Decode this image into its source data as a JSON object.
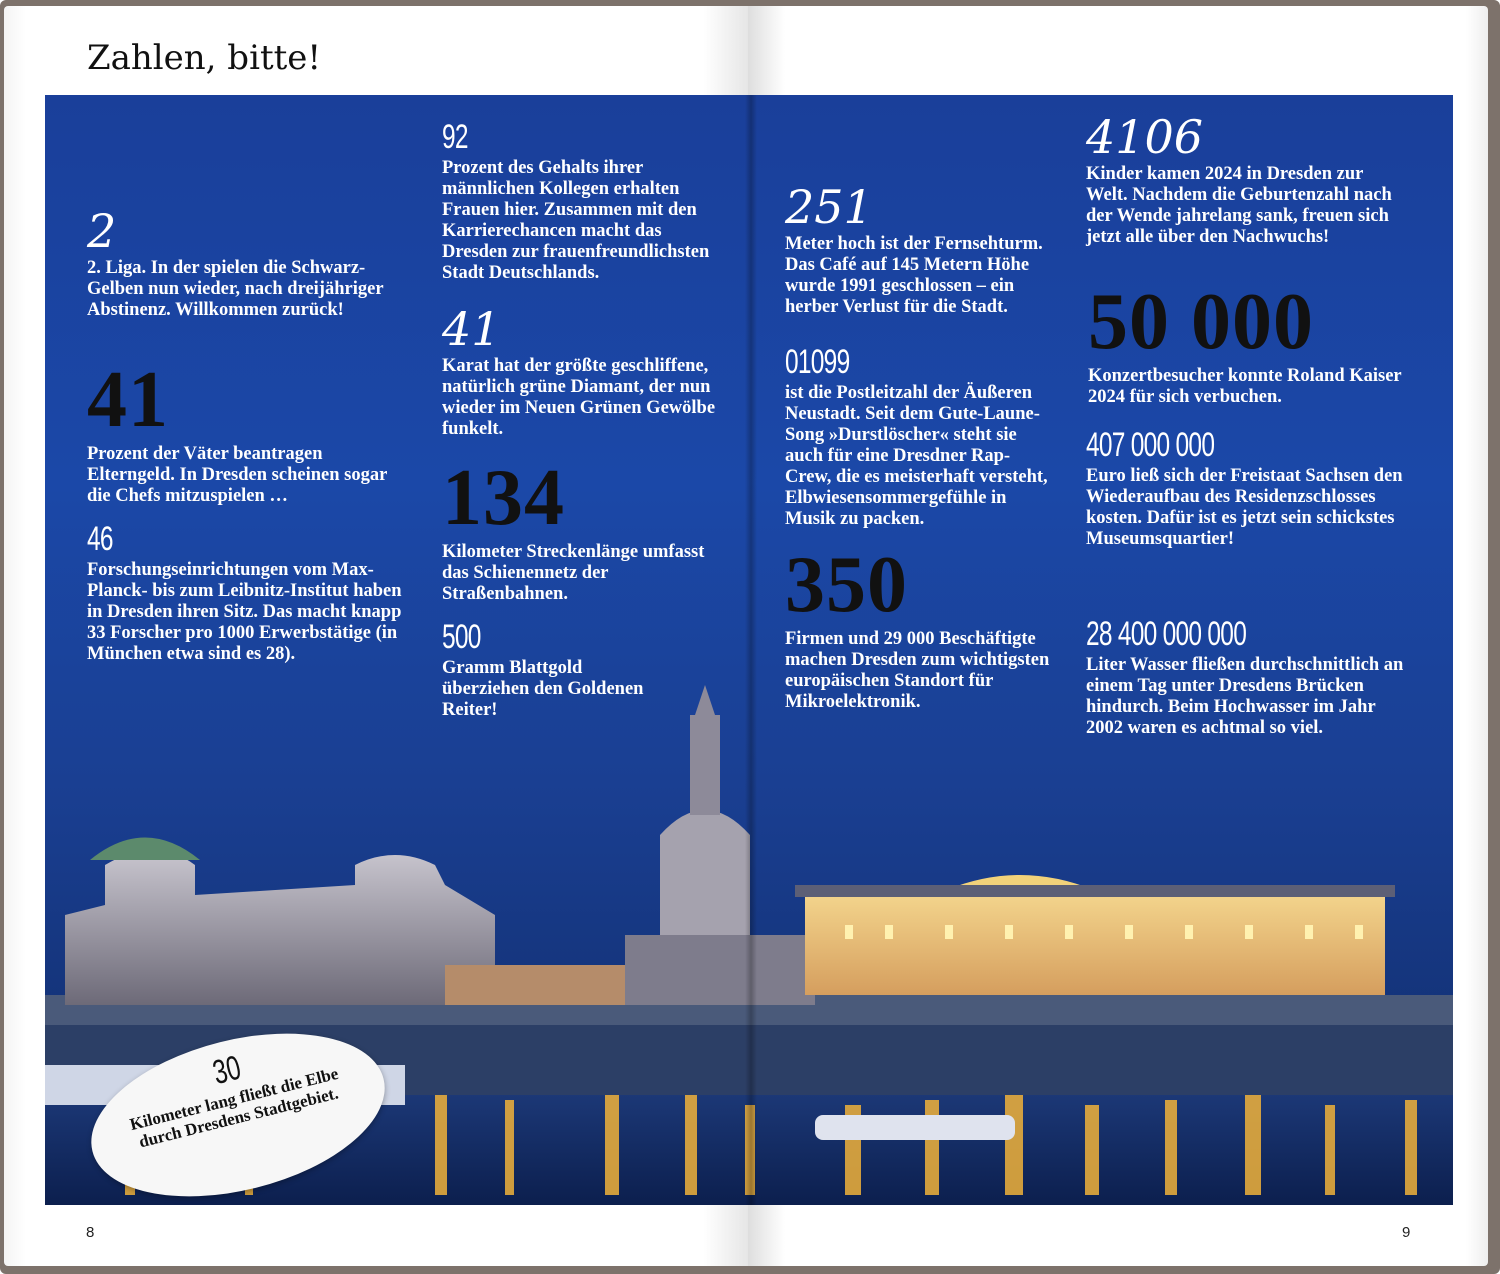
{
  "header": {
    "title": "Zahlen, bitte!"
  },
  "colors": {
    "panel_blue": "#1b48a8",
    "book_edge": "#7d726b",
    "big_number": "#111111"
  },
  "stats": [
    {
      "number": "2",
      "text": "2. Liga. In der spielen die Schwarz-Gelben nun wieder, nach dreijähriger Abstinenz. Willkommen zurück!"
    },
    {
      "number": "41",
      "text": "Prozent der Väter beantragen Elterngeld. In Dresden scheinen sogar die Chefs mitzuspielen …"
    },
    {
      "number": "46",
      "text": "Forschungseinrichtungen vom Max-Planck- bis zum Leibnitz-Institut haben in Dresden ihren Sitz. Das macht knapp 33 Forscher pro 1000 Erwerbstätige (in München etwa sind es 28)."
    },
    {
      "number": "92",
      "text": "Prozent des Gehalts ihrer männlichen Kollegen erhalten Frauen hier. Zusammen mit den Karrierechancen macht das Dresden zur frauenfreundlichsten Stadt Deutschlands."
    },
    {
      "number": "41",
      "text": "Karat hat der größte geschliffene, natürlich grüne Diamant, der nun wieder im Neuen Grünen Gewölbe funkelt."
    },
    {
      "number": "134",
      "text": "Kilometer Streckenlänge umfasst das Schienennetz der Straßenbahnen."
    },
    {
      "number": "500",
      "text": "Gramm Blattgold überziehen den Goldenen Reiter!"
    },
    {
      "number": "251",
      "text": "Meter hoch ist der Fernsehturm. Das Café auf 145 Metern Höhe wurde 1991 geschlossen – ein herber Verlust für die Stadt."
    },
    {
      "number": "01099",
      "text": "ist die Postleitzahl der Äußeren Neustadt. Seit dem Gute-Laune-Song »Durstlöscher« steht sie auch für eine Dresdner Rap-Crew, die es meisterhaft versteht, Elbwiesensommergefühle in Musik zu packen."
    },
    {
      "number": "350",
      "text": "Firmen und 29 000 Beschäftigte machen Dresden zum wichtigsten europäischen Standort für Mikroelektronik."
    },
    {
      "number": "4106",
      "text": "Kinder kamen 2024 in Dresden zur Welt. Nachdem die Geburtenzahl nach der Wende jahrelang sank, freuen sich jetzt alle über den Nachwuchs!"
    },
    {
      "number": "50 000",
      "text": "Konzertbesucher konnte Roland Kaiser 2024 für sich verbuchen."
    },
    {
      "number": "407 000 000",
      "text": "Euro ließ sich der Freistaat Sachsen den Wiederaufbau des Residenzschlosses kosten. Dafür ist es jetzt sein schickstes Museumsquartier!"
    },
    {
      "number": "28 400 000 000",
      "text": "Liter Wasser fließen durchschnittlich an einem Tag unter Dresdens Brücken hindurch. Beim Hochwasser im Jahr 2002 waren es achtmal so viel."
    }
  ],
  "sticker": {
    "number": "30",
    "text": "Kilometer lang fließt die Elbe durch Dresdens Stadtgebiet."
  },
  "footer": {
    "page_left": "8",
    "page_right": "9"
  }
}
